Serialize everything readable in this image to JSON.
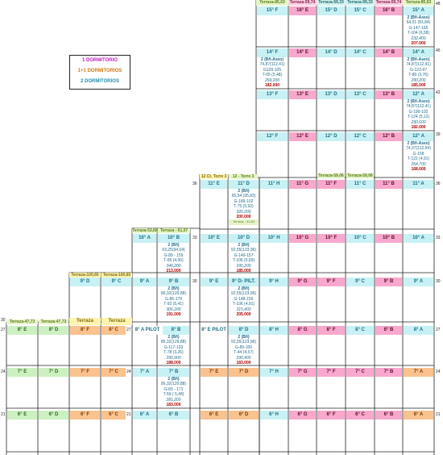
{
  "legend": {
    "one": "1 DORMITORIO",
    "one_color": "#c020c0",
    "two_one": "1+1 DORMITORIOS",
    "two_one_color": "#d07a10",
    "two": "2 DORMITORIOS",
    "two_color": "#1f8fb0"
  },
  "headers": {
    "h1": "Terraza-85,63",
    "h2": "Terraza-59,74",
    "h3": "Terraza-59,33",
    "h4": "Terraza-59,33",
    "h5": "Terraza-59,74",
    "h6": "Terraza-85,63",
    "h11a": "12 Ct. Torre 3",
    "h11b": "12 - Torre 3",
    "h11c": "Terraza-59,06",
    "h11d": "Terraza-59,06",
    "h10a": "Terraza-53,68",
    "h10b": "Terraza - 61,57",
    "h9a": "Terraza-100,65",
    "h9b": "Terraza-100,65",
    "h8a": "Terraza-47,73",
    "h8b": "Terraza-47,73",
    "h8c": "Terraza",
    "h8d": "Terraza"
  },
  "floor_numbers": {
    "r15": "48",
    "r15b": "51",
    "r14": "45",
    "r13": "42",
    "r12": "39",
    "r11": "36",
    "r11l": "36",
    "r10": "33",
    "r10l": "33",
    "r9": "30",
    "r9l": "30",
    "r8": "27",
    "r8l": "27",
    "r8m": "27",
    "r8m2": "30",
    "r7": "24",
    "r7l": "24",
    "r7m": "24",
    "r6": "21",
    "r6l": "21",
    "r6m": "21"
  },
  "units": {
    "15F": "15° F",
    "15E": "16° E",
    "15D": "15° D",
    "15C": "15° C",
    "15B": "16° B",
    "15A": "15° A",
    "14F": "14° F",
    "14E": "14° E",
    "14D": "14° D",
    "14C": "14° C",
    "14B": "14° B",
    "14A": "14° A",
    "13F": "13° F",
    "13E": "13° E",
    "13D": "13° D",
    "13C": "13° C",
    "13B": "13° B",
    "13A": "12° A",
    "12F": "12° F",
    "12E": "12° E",
    "12D": "12° D",
    "12C": "12° C",
    "12B": "12° B",
    "12A": "12° A",
    "11E": "11° E",
    "11D": "11° D",
    "11H": "11° H",
    "11G": "11° G",
    "11F": "11° F",
    "11C": "11° C",
    "11B": "11° B",
    "11A": "11° A",
    "10A": "10° A",
    "10B": "10° B",
    "10E": "10° E",
    "10D": "10° D",
    "10H": "10° H",
    "10G": "10° G",
    "10F": "10° F",
    "10C": "10° C",
    "10B2": "10° B",
    "10A2": "10° A",
    "9D": "9° D",
    "9C": "9° C",
    "9A": "9° A",
    "9B": "9° B",
    "9E": "9° E",
    "9DP": "9° D- PILT.",
    "9H": "9° H",
    "9G": "9° G",
    "9F": "9° F",
    "9C2": "9° C",
    "9B2": "9° B",
    "9A2": "9° A",
    "8E": "8° E",
    "8D": "8° D",
    "8F": "8° F",
    "8C": "8° C",
    "8AP": "8° A PILOT",
    "8B": "8° B",
    "8EP": "8° E PILOT",
    "8D2": "8° D",
    "8H": "8° H",
    "8G": "8° G",
    "8F2": "8° F",
    "8C2": "8° C",
    "8B2": "8° B",
    "8A2": "8° A",
    "7E": "7° E",
    "7D": "7° D",
    "7F": "7° F",
    "7C": "7° C",
    "7A": "7° A",
    "7B": "7° B",
    "7E2": "7° E",
    "7D2": "7° D",
    "7H": "7° H",
    "7G": "7° G",
    "7F2": "7° F",
    "7C2": "7° C",
    "7B2": "7° B",
    "7A2": "7° A",
    "6E": "6° E",
    "6D": "6° D",
    "6F": "6° F",
    "6C": "6° C",
    "6A": "6° A",
    "6B": "6° B",
    "6E2": "6° E",
    "6D2": "6° D",
    "6H": "6° H",
    "6G": "6° G",
    "6F2": "6° F",
    "6C2": "6° C",
    "6B2": "6° B",
    "6A2": "6° A"
  },
  "info": {
    "i15A": {
      "l1": "2 (Bñ-Aseo)",
      "l2": "64,51 (81,84)",
      "l3": "G-147-165",
      "l4": "T-104 (6,58)",
      "area": "232,400",
      "price": "207.000"
    },
    "i14F": {
      "l1": "2 (Bñ-Aseo)",
      "l2": "74,87(112,41)",
      "l3": "G128-105",
      "l4": "T-65 (5,48)",
      "area": "269,200",
      "price": "182.000"
    },
    "i14A": {
      "l1": "2 (Bñ-Aseo)",
      "l2": "74,87(112,41)",
      "l3": "G-123-97",
      "l4": "T-80 (3,76)",
      "area": "290,200",
      "price": "185.000"
    },
    "i13A": {
      "l1": "2 (Bñ-Aseo)",
      "l2": "74,87(112,41)",
      "l3": "G-190-102",
      "l4": "T-124 (5,12)",
      "area": "290,600",
      "price": "182.000"
    },
    "i12A": {
      "l1": "2 (Bñ-Aseo)",
      "l2": "74,97(112,54)",
      "l3": "G-158",
      "l4": "T-122 (4,91)",
      "area": "264,700",
      "price": "168.000"
    },
    "i11D": {
      "l1": "2 (Bñ)",
      "l2": "65,54 (95,83)",
      "l3": "G-189-102",
      "l4": "T-75 (5,92)",
      "area": "320,200",
      "price": "200.000",
      "l5": "Terraza - 41,50"
    },
    "i10B": {
      "l1": "2 (Bñ)",
      "l2": "63,25(94,04)",
      "l3": "G-89 - 159",
      "l4": "T-65 (4,96)",
      "area": "340,200",
      "price": "213.000"
    },
    "i10D": {
      "l1": "2 (Bñ)",
      "l2": "92,55(123,96)",
      "l3": "G-149-157",
      "l4": "T-106 (5,69)",
      "area": "295,200",
      "price": "185.000"
    },
    "i9B": {
      "l1": "2 (Bñ)",
      "l2": "86,32(129,88)",
      "l3": "G-86-179",
      "l4": "T-92 (5,41)",
      "area": "306,200",
      "price": "191.000"
    },
    "i9D": {
      "l1": "2 (Bñ)",
      "l2": "92,55(123,96)",
      "l3": "G-148-156",
      "l4": "T-106 (4,91)",
      "area": "315,400",
      "price": "205.000"
    },
    "i8B": {
      "l1": "2 (Bñ)",
      "l2": "86,32(129,88)",
      "l3": "G-117-103",
      "l4": "T-78 (3,26)",
      "area": "290,900",
      "price": "188.000"
    },
    "i8D": {
      "l1": "2 (Bñ)",
      "l2": "92,55(123,96)",
      "l3": "G-89-100",
      "l4": "T-44 (4,57)",
      "area": "290,400",
      "price": "183.000"
    },
    "i7B": {
      "l1": "2 (Bñ)",
      "l2": "86,32(129,88)",
      "l3": "G-83 - 171",
      "l4": "T-59 ( 5,48)",
      "area": "281,200",
      "price": "183.000"
    }
  }
}
